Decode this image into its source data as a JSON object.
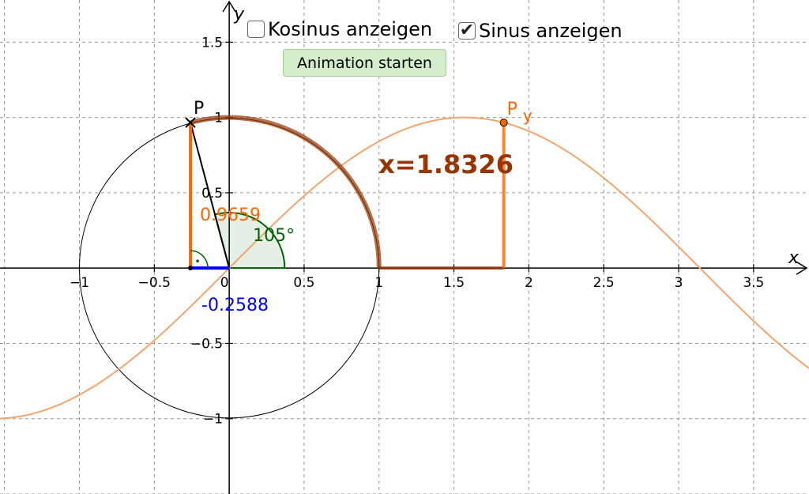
{
  "controls": {
    "cos_checkbox": {
      "label": "Kosinus anzeigen",
      "checked": false
    },
    "sin_checkbox": {
      "label": "Sinus anzeigen",
      "checked": true
    },
    "animation_button": "Animation starten"
  },
  "graph": {
    "axis_x_label": "x",
    "axis_y_label": "y",
    "x_ticks": [
      {
        "value": -1,
        "label": "−1"
      },
      {
        "value": -0.5,
        "label": "−0.5"
      },
      {
        "value": 0,
        "label": "0"
      },
      {
        "value": 0.5,
        "label": "0.5"
      },
      {
        "value": 1,
        "label": "1"
      },
      {
        "value": 1.5,
        "label": "1.5"
      },
      {
        "value": 2,
        "label": "2"
      },
      {
        "value": 2.5,
        "label": "2.5"
      },
      {
        "value": 3,
        "label": "3"
      },
      {
        "value": 3.5,
        "label": "3.5"
      }
    ],
    "y_ticks": [
      {
        "value": 1.5,
        "label": "1.5"
      },
      {
        "value": 1,
        "label": "1"
      },
      {
        "value": 0.5,
        "label": "0.5"
      },
      {
        "value": -0.5,
        "label": "−0.5"
      },
      {
        "value": -1,
        "label": "−1"
      }
    ],
    "x_range": [
      -1.53,
      3.87
    ],
    "y_range": [
      -1.5,
      1.78
    ],
    "grid": true,
    "angle_degrees": 105,
    "angle_label": "105°",
    "arc_length_label": "x=1.8326",
    "sin_value_label": "0.9659",
    "cos_value_label": "-0.2588",
    "point_p_label": "P",
    "point_py_label": "P",
    "point_py_subscript": "y",
    "colors": {
      "sine": "#ff6600",
      "sine_curve": "#f4a46c",
      "cosine": "#0000ff",
      "arc": "#993300",
      "angle": "#006400",
      "grid": "#999999"
    }
  }
}
